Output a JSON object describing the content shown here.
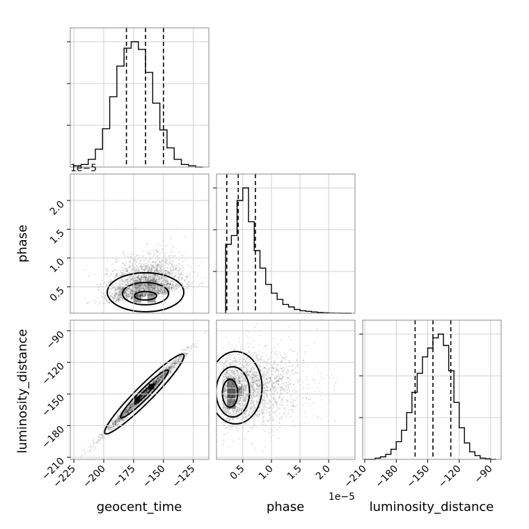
{
  "chart_data": {
    "type": "corner",
    "parameters": [
      "geocent_time",
      "phase",
      "luminosity_distance"
    ],
    "axis_labels": {
      "geocent_time": "geocent_time",
      "phase": "phase",
      "luminosity_distance": "luminosity_distance"
    },
    "offset_texts": {
      "phase_y": "1e−5",
      "phase_x": "1e−5"
    },
    "ranges": {
      "geocent_time": [
        -228,
        -112
      ],
      "phase": [
        0.04,
        2.46
      ],
      "luminosity_distance": [
        -212,
        -80
      ]
    },
    "ticks": {
      "geocent_time": [
        -225,
        -200,
        -175,
        -150,
        -125
      ],
      "geocent_time_labels": [
        "−225",
        "−200",
        "−175",
        "−150",
        "−125"
      ],
      "phase": [
        0.5,
        1.0,
        1.5,
        2.0
      ],
      "phase_labels": [
        "0.5",
        "1.0",
        "1.5",
        "2.0"
      ],
      "luminosity_distance": [
        -210,
        -180,
        -150,
        -120,
        -90
      ],
      "luminosity_distance_labels": [
        "−210",
        "−180",
        "−150",
        "−120",
        "−90"
      ]
    },
    "histograms": {
      "geocent_time": {
        "edges": [
          -225,
          -219,
          -213,
          -207,
          -201,
          -195,
          -189,
          -183,
          -177,
          -171,
          -165,
          -159,
          -153,
          -147,
          -141,
          -135,
          -129,
          -123,
          -117
        ],
        "values": [
          0.01,
          0.02,
          0.06,
          0.14,
          0.3,
          0.55,
          0.79,
          0.93,
          0.98,
          0.92,
          0.74,
          0.5,
          0.29,
          0.15,
          0.06,
          0.02,
          0.01,
          0.0
        ],
        "quantiles": [
          -181,
          -165,
          -150
        ]
      },
      "phase": {
        "edges": [
          0.2,
          0.3,
          0.4,
          0.5,
          0.6,
          0.7,
          0.8,
          0.9,
          1.0,
          1.1,
          1.2,
          1.3,
          1.4,
          1.5,
          1.6,
          1.7,
          1.8,
          1.9,
          2.0,
          2.1,
          2.2,
          2.3,
          2.4
        ],
        "values": [
          0.55,
          0.62,
          0.9,
          1.0,
          0.73,
          0.5,
          0.36,
          0.23,
          0.16,
          0.11,
          0.07,
          0.05,
          0.03,
          0.02,
          0.015,
          0.01,
          0.006,
          0.004,
          0.002,
          0.001,
          0.0,
          0.0
        ],
        "quantiles": [
          0.22,
          0.42,
          0.72
        ]
      },
      "luminosity_distance": {
        "edges": [
          -210,
          -205,
          -200,
          -195,
          -190,
          -185,
          -180,
          -175,
          -170,
          -165,
          -160,
          -155,
          -150,
          -145,
          -140,
          -135,
          -130,
          -125,
          -120,
          -115,
          -110,
          -105,
          -100,
          -95,
          -90,
          -85
        ],
        "values": [
          0.0,
          0.0,
          0.01,
          0.02,
          0.04,
          0.08,
          0.14,
          0.23,
          0.37,
          0.53,
          0.68,
          0.81,
          0.88,
          0.96,
          0.99,
          0.9,
          0.7,
          0.45,
          0.25,
          0.13,
          0.06,
          0.03,
          0.01,
          0.005,
          0.0
        ],
        "quantiles": [
          -162,
          -145,
          -128
        ]
      }
    },
    "panels_2d": [
      {
        "x": "geocent_time",
        "y": "phase",
        "correlation": 0.3
      },
      {
        "x": "geocent_time",
        "y": "luminosity_distance",
        "correlation": 0.97
      },
      {
        "x": "phase",
        "y": "luminosity_distance",
        "correlation": 0.25
      }
    ],
    "grid": true
  }
}
